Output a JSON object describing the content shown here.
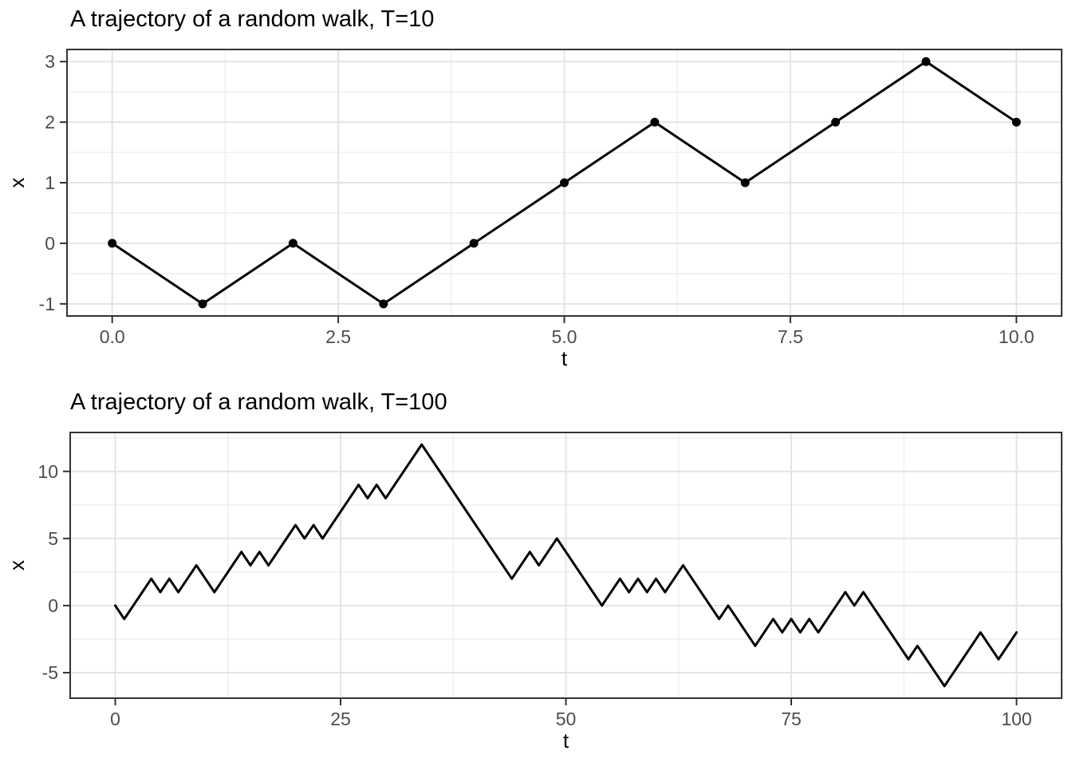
{
  "figure": {
    "background": "#FFFFFF"
  },
  "styles": {
    "grid_major": "#E4E4E4",
    "grid_minor": "#EFEFEF",
    "panel_border": "#333333",
    "tick_color": "#333333",
    "tick_label_color": "#4D4D4D",
    "text_color": "#000000",
    "line_color": "#000000",
    "point_color": "#000000"
  },
  "chart_data": [
    {
      "type": "line",
      "title": "A trajectory of a random walk, T=10",
      "xlabel": "t",
      "ylabel": "x",
      "show_points": true,
      "grid": true,
      "legend": "none",
      "xlim": [
        0,
        10
      ],
      "ylim": [
        -1,
        3
      ],
      "x": [
        0,
        1,
        2,
        3,
        4,
        5,
        6,
        7,
        8,
        9,
        10
      ],
      "values": [
        0,
        -1,
        0,
        -1,
        0,
        1,
        2,
        1,
        2,
        3,
        2
      ],
      "x_ticks": {
        "values": [
          0,
          2.5,
          5,
          7.5,
          10
        ],
        "labels": [
          "0.0",
          "2.5",
          "5.0",
          "7.5",
          "10.0"
        ],
        "minor": [
          1.25,
          3.75,
          6.25,
          8.75
        ]
      },
      "y_ticks": {
        "values": [
          -1,
          0,
          1,
          2,
          3
        ],
        "labels": [
          "-1",
          "0",
          "1",
          "2",
          "3"
        ],
        "minor": [
          -0.5,
          0.5,
          1.5,
          2.5
        ]
      }
    },
    {
      "type": "line",
      "title": "A trajectory of a random walk, T=100",
      "xlabel": "t",
      "ylabel": "x",
      "show_points": false,
      "grid": true,
      "legend": "none",
      "xlim": [
        0,
        100
      ],
      "ylim": [
        -6,
        12
      ],
      "x": [
        0,
        1,
        2,
        3,
        4,
        5,
        6,
        7,
        8,
        9,
        10,
        11,
        12,
        13,
        14,
        15,
        16,
        17,
        18,
        19,
        20,
        21,
        22,
        23,
        24,
        25,
        26,
        27,
        28,
        29,
        30,
        31,
        32,
        33,
        34,
        35,
        36,
        37,
        38,
        39,
        40,
        41,
        42,
        43,
        44,
        45,
        46,
        47,
        48,
        49,
        50,
        51,
        52,
        53,
        54,
        55,
        56,
        57,
        58,
        59,
        60,
        61,
        62,
        63,
        64,
        65,
        66,
        67,
        68,
        69,
        70,
        71,
        72,
        73,
        74,
        75,
        76,
        77,
        78,
        79,
        80,
        81,
        82,
        83,
        84,
        85,
        86,
        87,
        88,
        89,
        90,
        91,
        92,
        93,
        94,
        95,
        96,
        97,
        98,
        99,
        100
      ],
      "values": [
        0,
        -1,
        0,
        1,
        2,
        1,
        2,
        1,
        2,
        3,
        2,
        1,
        2,
        3,
        4,
        3,
        4,
        3,
        4,
        5,
        6,
        5,
        6,
        5,
        6,
        7,
        8,
        9,
        8,
        9,
        8,
        9,
        10,
        11,
        12,
        11,
        10,
        9,
        8,
        7,
        6,
        5,
        4,
        3,
        2,
        3,
        4,
        3,
        4,
        5,
        4,
        3,
        2,
        1,
        0,
        1,
        2,
        1,
        2,
        1,
        2,
        1,
        2,
        3,
        2,
        1,
        0,
        -1,
        0,
        -1,
        -2,
        -3,
        -2,
        -1,
        -2,
        -1,
        -2,
        -1,
        -2,
        -1,
        0,
        1,
        0,
        1,
        0,
        -1,
        -2,
        -3,
        -4,
        -3,
        -4,
        -5,
        -6,
        -5,
        -4,
        -3,
        -2,
        -3,
        -4,
        -3,
        -2
      ],
      "x_ticks": {
        "values": [
          0,
          25,
          50,
          75,
          100
        ],
        "labels": [
          "0",
          "25",
          "50",
          "75",
          "100"
        ],
        "minor": [
          12.5,
          37.5,
          62.5,
          87.5
        ]
      },
      "y_ticks": {
        "values": [
          -5,
          0,
          5,
          10
        ],
        "labels": [
          "-5",
          "0",
          "5",
          "10"
        ],
        "minor": [
          -2.5,
          2.5,
          7.5,
          12.5
        ]
      }
    }
  ]
}
